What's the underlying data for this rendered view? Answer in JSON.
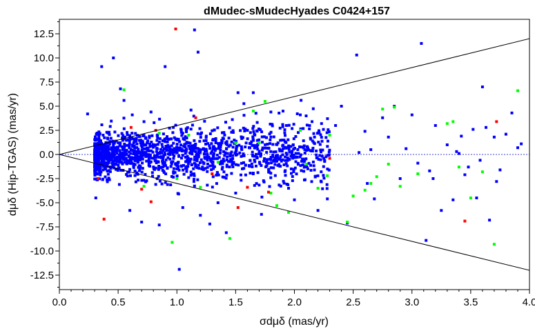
{
  "chart_data": {
    "type": "scatter",
    "title": "dMudec-sMudecHyades  C0424+157",
    "xlabel": "σdμδ (mas/yr)",
    "ylabel": "dμδ (Hip-TGAS) (mas/yr)",
    "xlim": [
      0.0,
      4.0
    ],
    "ylim": [
      -14.0,
      14.0
    ],
    "x_ticks": [
      "0.0",
      "0.5",
      "1.0",
      "1.5",
      "2.0",
      "2.5",
      "3.0",
      "3.5",
      "4.0"
    ],
    "y_ticks": [
      "-12.5",
      "-10.0",
      "-7.5",
      "-5.0",
      "-2.5",
      "0.0",
      "2.5",
      "5.0",
      "7.5",
      "10.0",
      "12.5"
    ],
    "grid": false,
    "legend": "none",
    "reference_lines": [
      {
        "name": "upper-envelope",
        "style": "solid",
        "color": "#000000",
        "x": [
          0.0,
          4.0
        ],
        "y": [
          0.0,
          12.0
        ]
      },
      {
        "name": "lower-envelope",
        "style": "solid",
        "color": "#000000",
        "x": [
          0.0,
          4.0
        ],
        "y": [
          0.0,
          -12.0
        ]
      },
      {
        "name": "zero-line",
        "style": "dashed",
        "color": "#0000cc",
        "x": [
          0.0,
          4.0
        ],
        "y": [
          0.0,
          0.0
        ]
      }
    ],
    "series": [
      {
        "color": "#0000ff",
        "dense_cloud": {
          "count": 1500,
          "x_range": [
            0.3,
            2.3
          ],
          "y_sigma": 1.3,
          "seed": 7
        },
        "x": [
          0.24,
          0.31,
          0.36,
          0.46,
          0.52,
          0.55,
          0.6,
          0.62,
          0.7,
          0.78,
          0.85,
          0.9,
          0.92,
          0.97,
          1.02,
          1.05,
          1.12,
          1.15,
          1.18,
          1.2,
          1.28,
          1.35,
          1.42,
          1.5,
          1.52,
          1.6,
          1.65,
          1.72,
          1.8,
          1.9,
          1.95,
          2.0,
          2.05,
          2.1,
          2.15,
          2.2,
          2.28,
          2.35,
          2.4,
          2.45,
          2.53,
          2.55,
          2.6,
          2.62,
          2.68,
          2.75,
          2.8,
          2.85,
          2.9,
          2.95,
          3.0,
          3.05,
          3.08,
          3.12,
          3.18,
          3.2,
          3.25,
          3.3,
          3.35,
          3.38,
          3.4,
          3.45,
          3.48,
          3.52,
          3.55,
          3.6,
          3.63,
          3.66,
          3.7,
          3.72,
          3.75,
          3.8,
          3.85,
          3.9,
          3.93,
          0.95,
          1.05,
          1.1,
          1.25,
          1.4,
          1.55,
          0.72,
          0.82,
          2.25,
          2.65,
          3.15,
          3.42,
          3.58
        ],
        "y": [
          4.2,
          -4.5,
          9.1,
          10.0,
          6.8,
          5.6,
          -5.8,
          4.1,
          -7.0,
          4.4,
          -7.3,
          9.1,
          1.3,
          2.8,
          -11.9,
          -5.5,
          4.6,
          12.9,
          10.6,
          -6.3,
          -7.2,
          -5.0,
          -8.1,
          -4.0,
          6.4,
          2.5,
          6.4,
          -6.2,
          4.4,
          3.1,
          -3.5,
          -4.7,
          4.1,
          4.0,
          3.4,
          -5.8,
          -4.6,
          3.0,
          5.0,
          -7.1,
          10.3,
          0.2,
          2.4,
          -3.0,
          -4.6,
          3.8,
          1.8,
          5.0,
          -2.5,
          0.6,
          4.1,
          -0.9,
          11.5,
          -8.9,
          -2.5,
          3.0,
          -5.8,
          1.0,
          -4.7,
          0.3,
          0.1,
          -2.1,
          -1.3,
          2.6,
          -4.5,
          7.0,
          2.8,
          -6.8,
          1.8,
          -2.8,
          -1.6,
          2.1,
          4.3,
          0.7,
          1.1,
          1.6,
          2.2,
          -2.4,
          1.9,
          -1.8,
          0.8,
          3.4,
          -3.1,
          -0.4,
          0.5,
          -1.7,
          1.9,
          -0.6
        ]
      },
      {
        "color": "#00ff00",
        "x": [
          0.72,
          0.96,
          1.1,
          1.2,
          1.3,
          1.45,
          1.5,
          1.65,
          1.75,
          1.8,
          1.85,
          1.95,
          2.05,
          2.1,
          2.2,
          2.28,
          2.45,
          2.5,
          2.6,
          2.7,
          2.75,
          2.8,
          2.85,
          2.9,
          3.05,
          3.3,
          3.35,
          3.4,
          3.6,
          3.7,
          3.9,
          0.55,
          0.85,
          1.0,
          1.35,
          1.7,
          2.3,
          2.65,
          3.5
        ],
        "y": [
          -3.3,
          -9.1,
          2.0,
          -3.4,
          -2.0,
          -8.7,
          1.2,
          4.5,
          5.5,
          -4.0,
          -5.3,
          -6.0,
          2.5,
          -1.0,
          -3.5,
          -2.2,
          -7.0,
          -4.3,
          -3.7,
          -2.3,
          4.7,
          -1.0,
          4.9,
          -3.3,
          -2.0,
          3.2,
          3.4,
          -1.3,
          -1.8,
          -9.3,
          6.6,
          6.7,
          2.2,
          -2.5,
          -0.8,
          1.2,
          2.0,
          -3.0,
          -4.5
        ]
      },
      {
        "color": "#ff0000",
        "x": [
          0.33,
          0.38,
          0.61,
          0.7,
          0.78,
          0.82,
          0.99,
          1.16,
          1.3,
          1.52,
          1.6,
          1.78,
          2.3,
          3.45,
          3.72
        ],
        "y": [
          -2.5,
          -6.7,
          2.8,
          -3.6,
          -4.9,
          2.5,
          13.0,
          3.8,
          -2.0,
          -5.5,
          -3.4,
          -3.9,
          -0.4,
          -6.9,
          3.4
        ]
      }
    ]
  }
}
